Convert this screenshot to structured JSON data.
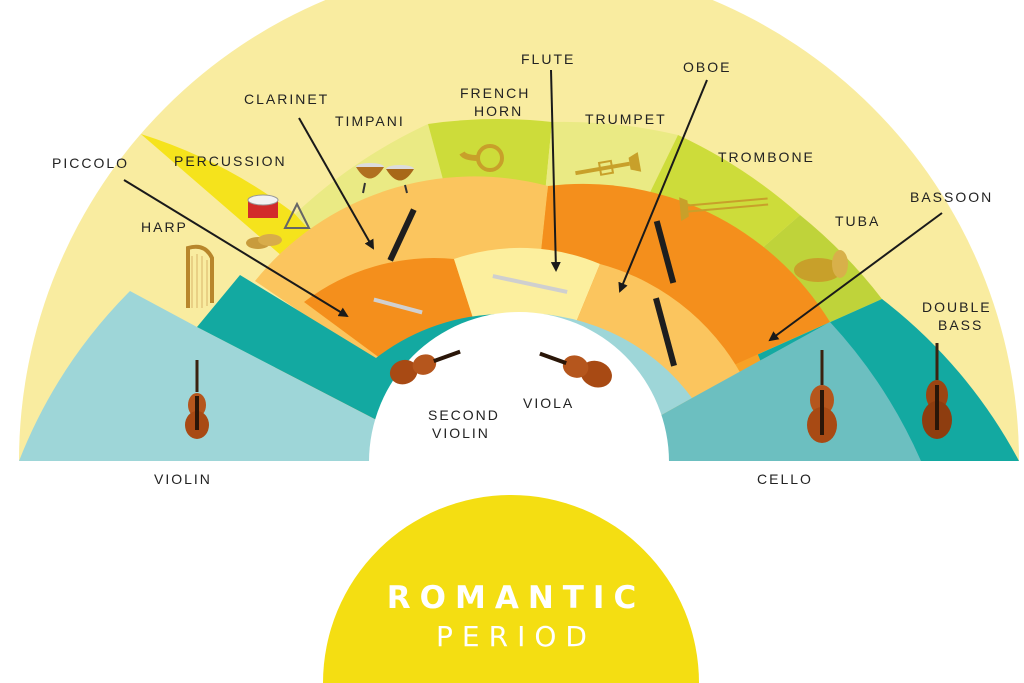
{
  "title": {
    "line1": "ROMANTIC",
    "line2": "PERIOD"
  },
  "labels": {
    "piccolo": "PICCOLO",
    "percussion": "PERCUSSION",
    "clarinet": "CLARINET",
    "timpani": "TIMPANI",
    "french_horn_1": "FRENCH",
    "french_horn_2": "HORN",
    "flute": "FLUTE",
    "oboe": "OBOE",
    "trumpet": "TRUMPET",
    "trombone": "TROMBONE",
    "bassoon": "BASSOON",
    "tuba": "TUBA",
    "harp": "HARP",
    "double_bass_1": "DOUBLE",
    "double_bass_2": "BASS",
    "viola": "VIOLA",
    "second_violin_1": "SECOND",
    "second_violin_2": "VIOLIN",
    "violin": "VIOLIN",
    "cello": "CELLO"
  },
  "colors": {
    "title_disc": "#f4de12",
    "strings_light": "#9ed6d8",
    "strings_dark": "#13a9a1",
    "strings_mid": "#6cbfc0",
    "woodwind_light": "#fcef9e",
    "woodwind_mid": "#fbc55e",
    "woodwind_orange": "#f7a226",
    "woodwind_dark": "#f48f1c",
    "brass_lime": "#cddc3a",
    "brass_pale": "#eaea84",
    "percussion_yellow": "#f5e31c",
    "harp_pale": "#f9eca0"
  },
  "icons": [
    "violin-icon",
    "second-violin-icon",
    "viola-icon",
    "cello-icon",
    "double-bass-icon",
    "harp-icon",
    "snare-drum-icon",
    "triangle-icon",
    "cymbals-icon",
    "timpani-icon",
    "french-horn-icon",
    "trumpet-icon",
    "trombone-icon",
    "tuba-icon",
    "clarinet-icon",
    "piccolo-icon",
    "flute-icon",
    "oboe-icon",
    "bassoon-icon"
  ]
}
